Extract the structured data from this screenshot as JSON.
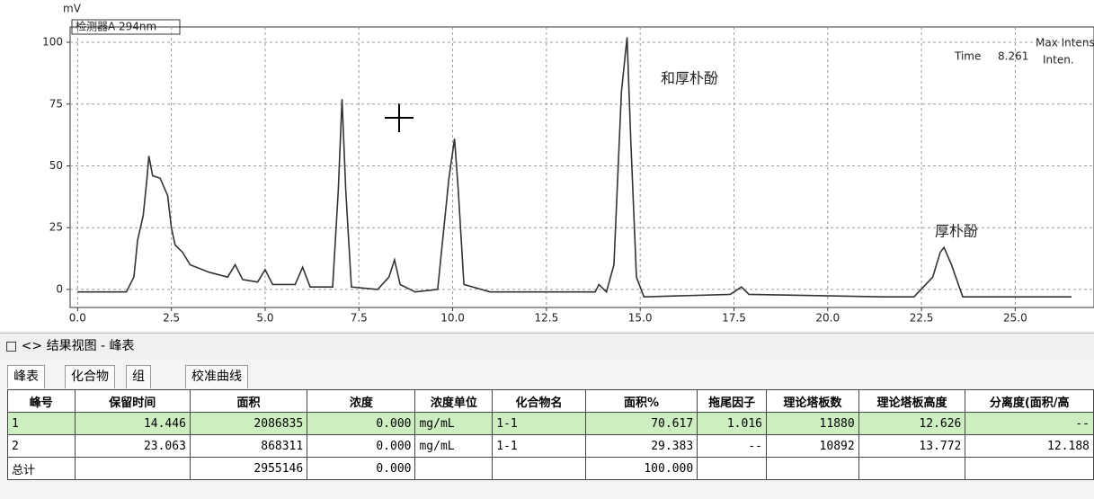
{
  "chart_data": {
    "type": "line",
    "y_label": "mV",
    "detector_label": "检测器A 294nm",
    "annotations": [
      "和厚朴酚",
      "厚朴酚"
    ],
    "info": [
      "Max Intens",
      "Time",
      "8.261",
      "Inten."
    ],
    "color": "#333333",
    "grid": true,
    "xlim": [
      -0.2,
      27.1
    ],
    "ylim": [
      -7.3,
      106.2
    ],
    "xticks": [
      {
        "value": 0,
        "label": "0.0"
      },
      {
        "value": 2.5,
        "label": "2.5"
      },
      {
        "value": 5,
        "label": "5.0"
      },
      {
        "value": 7.5,
        "label": "7.5"
      },
      {
        "value": 10,
        "label": "10.0"
      },
      {
        "value": 12.5,
        "label": "12.5"
      },
      {
        "value": 15,
        "label": "15.0"
      },
      {
        "value": 17.5,
        "label": "17.5"
      },
      {
        "value": 20,
        "label": "20.0"
      },
      {
        "value": 22.5,
        "label": "22.5"
      },
      {
        "value": 25,
        "label": "25.0"
      }
    ],
    "yticks": [
      0,
      25,
      50,
      75,
      100
    ],
    "x": [
      0,
      1.3,
      1.5,
      1.6,
      1.75,
      1.85,
      1.9,
      2.0,
      2.2,
      2.4,
      2.5,
      2.6,
      2.8,
      3.0,
      3.5,
      4.0,
      4.2,
      4.4,
      4.8,
      5.0,
      5.2,
      5.8,
      6.0,
      6.2,
      6.8,
      6.95,
      7.05,
      7.15,
      7.3,
      8.0,
      8.3,
      8.45,
      8.6,
      9.0,
      9.6,
      9.9,
      10.05,
      10.15,
      10.3,
      11,
      13.8,
      13.9,
      14.1,
      14.3,
      14.5,
      14.65,
      14.75,
      14.9,
      15.1,
      17.4,
      17.7,
      17.9,
      21.5,
      22.3,
      22.8,
      23.0,
      23.1,
      23.3,
      23.6,
      26.5
    ],
    "values": [
      -1,
      -1,
      5,
      20,
      30,
      45,
      54,
      46,
      45,
      38,
      25,
      18,
      15,
      10,
      7,
      5,
      10,
      4,
      3,
      8,
      2,
      2,
      9,
      1,
      1,
      40,
      77,
      40,
      1,
      0,
      5,
      12,
      2,
      -1,
      0,
      45,
      61,
      40,
      2,
      -1,
      -1,
      2,
      -1,
      10,
      80,
      102,
      60,
      5,
      -3,
      -2,
      1,
      -2,
      -3,
      -3,
      5,
      15,
      17,
      10,
      -3,
      -3
    ]
  },
  "panel": {
    "title": "结果视图 -  峰表",
    "tabs": [
      "峰表",
      "化合物",
      "组",
      "校准曲线"
    ]
  },
  "table": {
    "columns": [
      "峰号",
      "保留时间",
      "面积",
      "浓度",
      "浓度单位",
      "化合物名",
      "面积%",
      "拖尾因子",
      "理论塔板数",
      "理论塔板高度",
      "分离度(面积/高"
    ],
    "rows": [
      [
        "1",
        "14.446",
        "2086835",
        "0.000",
        "mg/mL",
        "1-1",
        "70.617",
        "1.016",
        "11880",
        "12.626",
        "--"
      ],
      [
        "2",
        "23.063",
        "868311",
        "0.000",
        "mg/mL",
        "1-1",
        "29.383",
        "--",
        "10892",
        "13.772",
        "12.188"
      ],
      [
        "总计",
        null,
        "2955146",
        "0.000",
        null,
        null,
        "100.000",
        null,
        null,
        null,
        null
      ]
    ]
  }
}
